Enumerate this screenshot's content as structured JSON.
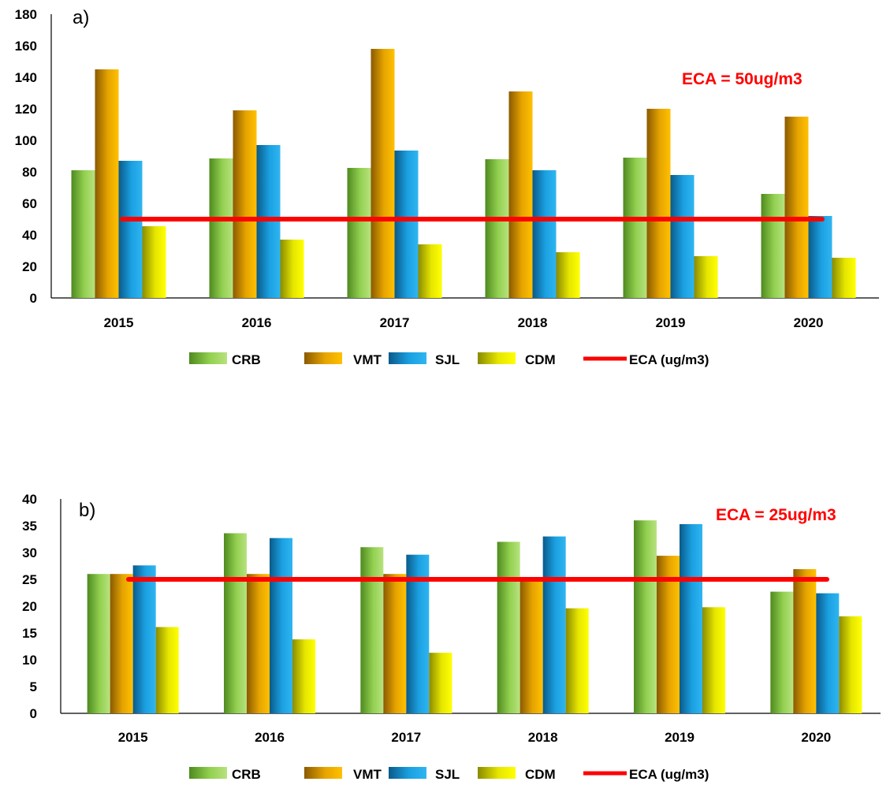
{
  "colors": {
    "CRB": [
      "#4f8a1f",
      "#92d050",
      "#b8e27f"
    ],
    "VMT": [
      "#8a5a00",
      "#e6a400",
      "#ffc000"
    ],
    "SJL": [
      "#0a5a8a",
      "#1ba1e2",
      "#2fb5f0"
    ],
    "CDM": [
      "#8a8a00",
      "#e6e600",
      "#ffff00"
    ],
    "ECA": "#ff0000",
    "annotation": "#ff0000"
  },
  "legend": {
    "items": [
      {
        "label": "CRB",
        "key": "CRB",
        "kind": "bar"
      },
      {
        "label": "VMT",
        "key": "VMT",
        "kind": "bar"
      },
      {
        "label": "SJL",
        "key": "SJL",
        "kind": "bar"
      },
      {
        "label": "CDM",
        "key": "CDM",
        "kind": "bar"
      },
      {
        "label": "ECA (ug/m3)",
        "key": "ECA",
        "kind": "line"
      }
    ]
  },
  "chart_data": [
    {
      "type": "bar",
      "panel_label": "a)",
      "annotation": "ECA = 50ug/m3",
      "categories": [
        "2015",
        "2016",
        "2017",
        "2018",
        "2019",
        "2020"
      ],
      "ylim": [
        0,
        180
      ],
      "yticks": [
        0,
        20,
        40,
        60,
        80,
        100,
        120,
        140,
        160,
        180
      ],
      "grid": false,
      "legend_position": "bottom",
      "series": [
        {
          "name": "CRB",
          "values": [
            81,
            88.5,
            82.5,
            88,
            89,
            66
          ]
        },
        {
          "name": "VMT",
          "values": [
            145,
            119,
            158,
            131,
            120,
            115
          ]
        },
        {
          "name": "SJL",
          "values": [
            87,
            97,
            93.5,
            81,
            78,
            52
          ]
        },
        {
          "name": "CDM",
          "values": [
            45.5,
            37,
            34,
            29,
            26.5,
            25.5
          ]
        }
      ],
      "reference_line": {
        "name": "ECA (ug/m3)",
        "value": 50
      }
    },
    {
      "type": "bar",
      "panel_label": "b)",
      "annotation": "ECA = 25ug/m3",
      "categories": [
        "2015",
        "2016",
        "2017",
        "2018",
        "2019",
        "2020"
      ],
      "ylim": [
        0,
        40
      ],
      "yticks": [
        0,
        5,
        10,
        15,
        20,
        25,
        30,
        35,
        40
      ],
      "grid": false,
      "legend_position": "bottom",
      "series": [
        {
          "name": "CRB",
          "values": [
            26,
            33.6,
            31,
            32,
            36,
            22.7
          ]
        },
        {
          "name": "VMT",
          "values": [
            26,
            26,
            26,
            25,
            29.4,
            26.9
          ]
        },
        {
          "name": "SJL",
          "values": [
            27.6,
            32.7,
            29.6,
            33,
            35.3,
            22.4
          ]
        },
        {
          "name": "CDM",
          "values": [
            16.1,
            13.8,
            11.3,
            19.6,
            19.8,
            18.1
          ]
        }
      ],
      "reference_line": {
        "name": "ECA (ug/m3)",
        "value": 25
      }
    }
  ]
}
